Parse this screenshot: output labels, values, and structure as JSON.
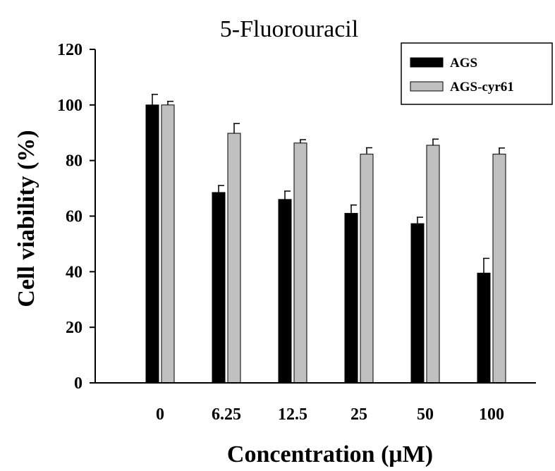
{
  "chart_data": {
    "type": "bar",
    "title": "5-Fluorouracil",
    "xlabel": "Concentration (μM)",
    "ylabel": "Cell viability (%)",
    "categories": [
      "0",
      "6.25",
      "12.5",
      "25",
      "50",
      "100"
    ],
    "ylim": [
      0,
      120
    ],
    "yticks": [
      0,
      20,
      40,
      60,
      80,
      100,
      120
    ],
    "grid": false,
    "legend_position": "top-right",
    "series": [
      {
        "name": "AGS",
        "color": "#000000",
        "values": [
          100,
          68.5,
          66,
          61,
          57.3,
          39.5
        ],
        "errors": [
          3.8,
          2.5,
          3.0,
          3.0,
          2.3,
          5.3
        ]
      },
      {
        "name": "AGS-cyr61",
        "color": "#c0c0c0",
        "values": [
          100,
          89.8,
          86.3,
          82.3,
          85.5,
          82.3
        ],
        "errors": [
          1.3,
          3.5,
          1.2,
          2.3,
          2.2,
          2.2
        ]
      }
    ]
  }
}
